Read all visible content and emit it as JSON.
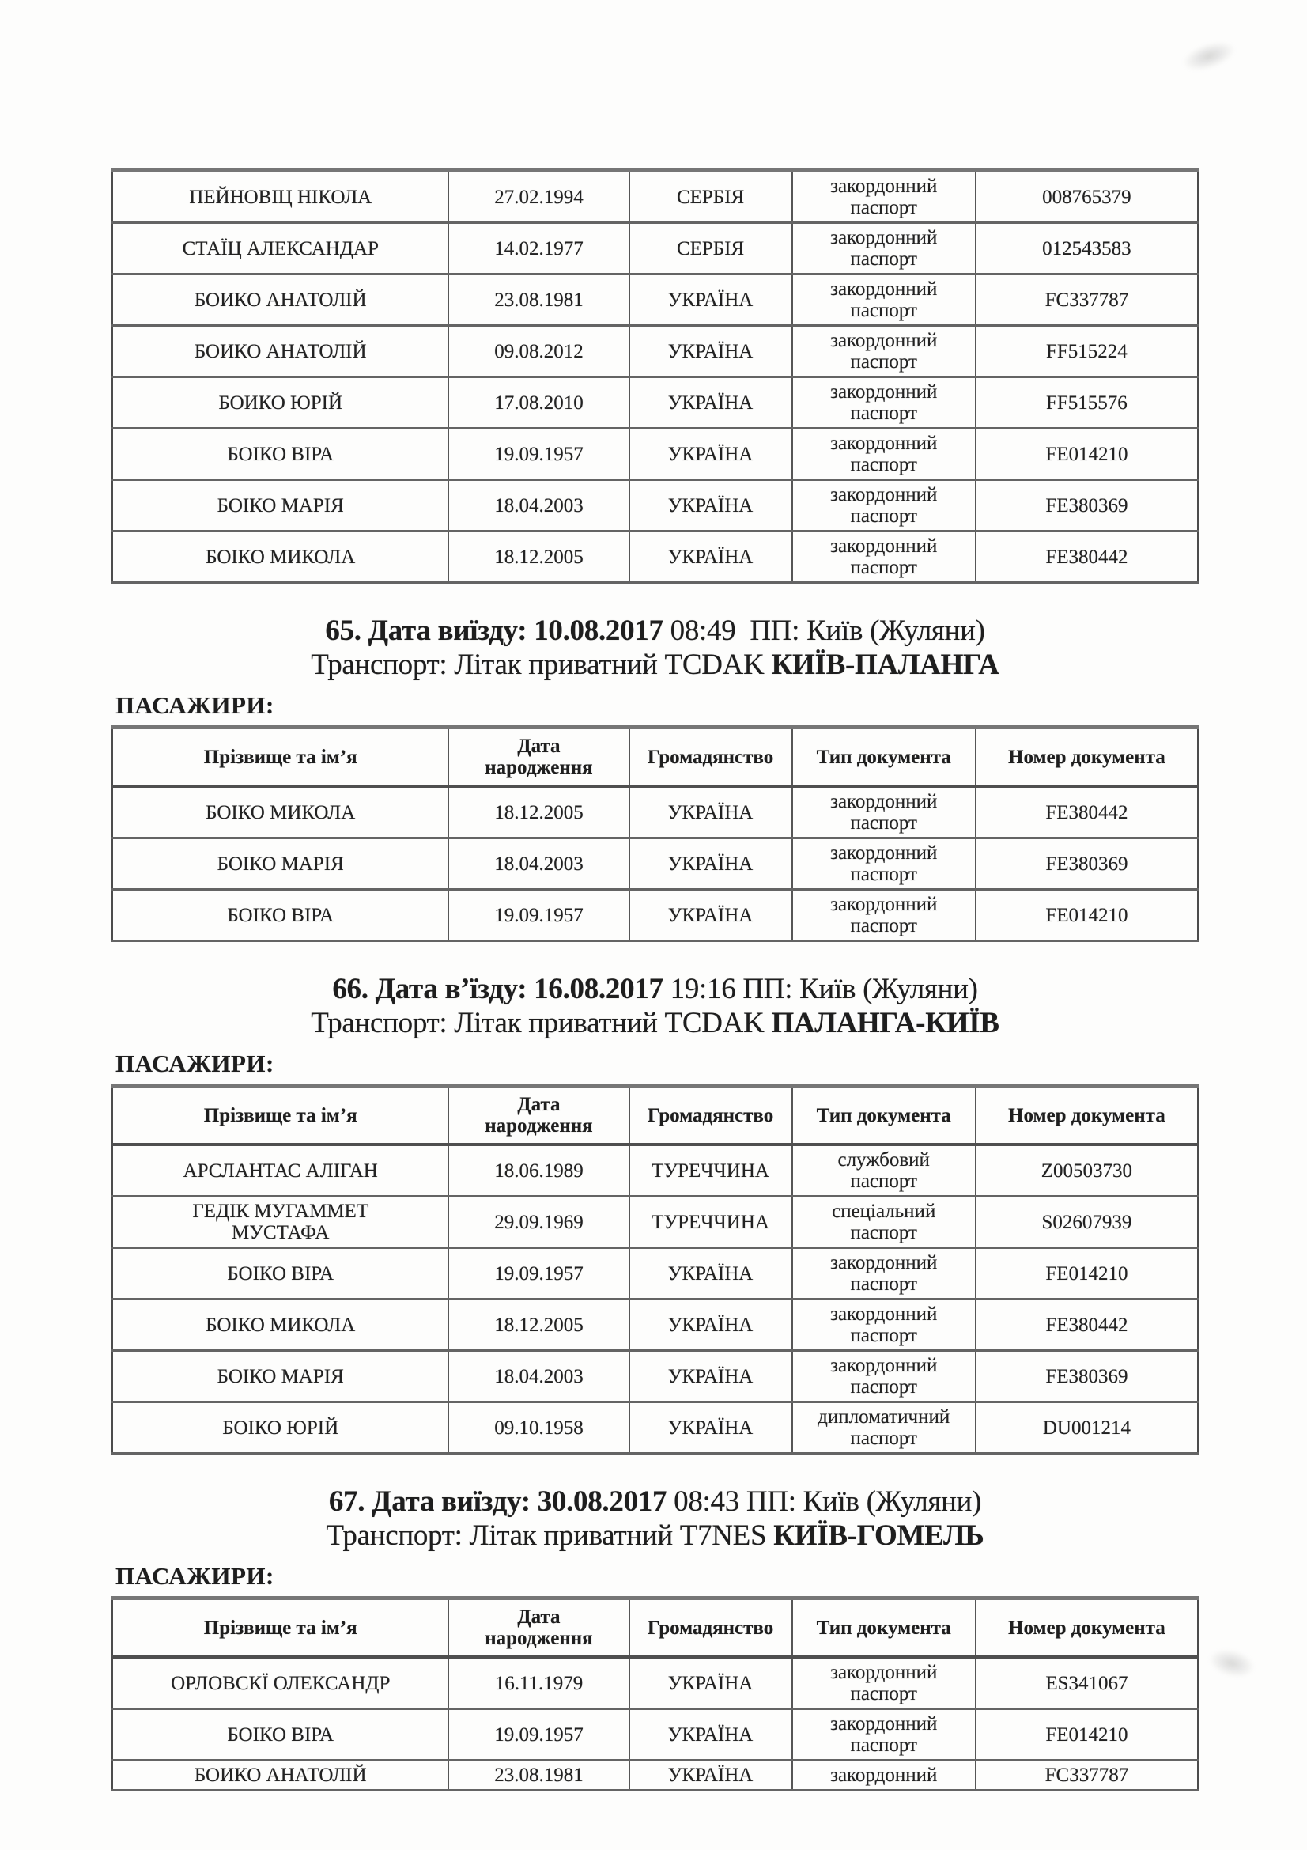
{
  "page": {
    "passengers_label": "ПАСАЖИРИ:",
    "columns": [
      "Прізвище та ім’я",
      "Дата\nнародження",
      "Громадянство",
      "Тип документа",
      "Номер документа"
    ],
    "colors": {
      "ink": "#1e1e1e",
      "border_dark": "#4c4c4c",
      "border_soft": "#767676",
      "paper": "#fdfdfc"
    }
  },
  "continuation_table": {
    "rows": [
      {
        "name": "ПЕЙНОВІЦ НІКОЛА",
        "dob": "27.02.1994",
        "citizenship": "СЕРБІЯ",
        "doc_type": "закордонний\nпаспорт",
        "doc_number": "008765379"
      },
      {
        "name": "СТАЇЦ АЛЕКСАНДАР",
        "dob": "14.02.1977",
        "citizenship": "СЕРБІЯ",
        "doc_type": "закордонний\nпаспорт",
        "doc_number": "012543583"
      },
      {
        "name": "БОИКО АНАТОЛІЙ",
        "dob": "23.08.1981",
        "citizenship": "УКРАЇНА",
        "doc_type": "закордонний\nпаспорт",
        "doc_number": "FC337787"
      },
      {
        "name": "БОИКО АНАТОЛІЙ",
        "dob": "09.08.2012",
        "citizenship": "УКРАЇНА",
        "doc_type": "закордонний\nпаспорт",
        "doc_number": "FF515224"
      },
      {
        "name": "БОИКО ЮРІЙ",
        "dob": "17.08.2010",
        "citizenship": "УКРАЇНА",
        "doc_type": "закордонний\nпаспорт",
        "doc_number": "FF515576"
      },
      {
        "name": "БОІКО ВІРА",
        "dob": "19.09.1957",
        "citizenship": "УКРАЇНА",
        "doc_type": "закордонний\nпаспорт",
        "doc_number": "FE014210"
      },
      {
        "name": "БОІКО МАРІЯ",
        "dob": "18.04.2003",
        "citizenship": "УКРАЇНА",
        "doc_type": "закордонний\nпаспорт",
        "doc_number": "FE380369"
      },
      {
        "name": "БОІКО МИКОЛА",
        "dob": "18.12.2005",
        "citizenship": "УКРАЇНА",
        "doc_type": "закордонний\nпаспорт",
        "doc_number": "FE380442"
      }
    ]
  },
  "sections": [
    {
      "id": "65",
      "date_bold": "65. Дата виїзду: 10.08.2017",
      "date_rest": "08:49  ПП: Київ (Жуляни)",
      "transport_prefix": "Транспорт: Літак приватний TCDAK",
      "transport_bold": "КИЇВ-ПАЛАНГА",
      "rows": [
        {
          "name": "БОІКО МИКОЛА",
          "dob": "18.12.2005",
          "citizenship": "УКРАЇНА",
          "doc_type": "закордонний\nпаспорт",
          "doc_number": "FE380442"
        },
        {
          "name": "БОІКО МАРІЯ",
          "dob": "18.04.2003",
          "citizenship": "УКРАЇНА",
          "doc_type": "закордонний\nпаспорт",
          "doc_number": "FE380369"
        },
        {
          "name": "БОІКО ВІРА",
          "dob": "19.09.1957",
          "citizenship": "УКРАЇНА",
          "doc_type": "закордонний\nпаспорт",
          "doc_number": "FE014210"
        }
      ]
    },
    {
      "id": "66",
      "date_bold": "66. Дата в’їзду: 16.08.2017",
      "date_rest": "19:16 ПП: Київ (Жуляни)",
      "transport_prefix": "Транспорт: Літак приватний TCDAK",
      "transport_bold": "ПАЛАНГА-КИЇВ",
      "rows": [
        {
          "name": "АРСЛАНТАС АЛІГАН",
          "dob": "18.06.1989",
          "citizenship": "ТУРЕЧЧИНА",
          "doc_type": "службовий\nпаспорт",
          "doc_number": "Z00503730"
        },
        {
          "name": "ГЕДІК МУГАММЕТ\nМУСТАФА",
          "dob": "29.09.1969",
          "citizenship": "ТУРЕЧЧИНА",
          "doc_type": "спеціальний\nпаспорт",
          "doc_number": "S02607939"
        },
        {
          "name": "БОІКО ВІРА",
          "dob": "19.09.1957",
          "citizenship": "УКРАЇНА",
          "doc_type": "закордонний\nпаспорт",
          "doc_number": "FE014210"
        },
        {
          "name": "БОІКО МИКОЛА",
          "dob": "18.12.2005",
          "citizenship": "УКРАЇНА",
          "doc_type": "закордонний\nпаспорт",
          "doc_number": "FE380442"
        },
        {
          "name": "БОІКО МАРІЯ",
          "dob": "18.04.2003",
          "citizenship": "УКРАЇНА",
          "doc_type": "закордонний\nпаспорт",
          "doc_number": "FE380369"
        },
        {
          "name": "БОІКО ЮРІЙ",
          "dob": "09.10.1958",
          "citizenship": "УКРАЇНА",
          "doc_type": "дипломатичний\nпаспорт",
          "doc_number": "DU001214"
        }
      ]
    },
    {
      "id": "67",
      "date_bold": "67. Дата виїзду: 30.08.2017",
      "date_rest": "08:43 ПП: Київ (Жуляни)",
      "transport_prefix": "Транспорт: Літак приватний T7NES",
      "transport_bold": "КИЇВ-ГОМЕЛЬ",
      "rows": [
        {
          "name": "ОРЛОВСКЇ ОЛЕКСАНДР",
          "dob": "16.11.1979",
          "citizenship": "УКРАЇНА",
          "doc_type": "закордонний\nпаспорт",
          "doc_number": "ES341067"
        },
        {
          "name": "БОІКО ВІРА",
          "dob": "19.09.1957",
          "citizenship": "УКРАЇНА",
          "doc_type": "закордонний\nпаспорт",
          "doc_number": "FE014210"
        },
        {
          "name": "БОИКО АНАТОЛІЙ",
          "dob": "23.08.1981",
          "citizenship": "УКРАЇНА",
          "doc_type": "закордонний",
          "doc_number": "FC337787"
        }
      ]
    }
  ]
}
